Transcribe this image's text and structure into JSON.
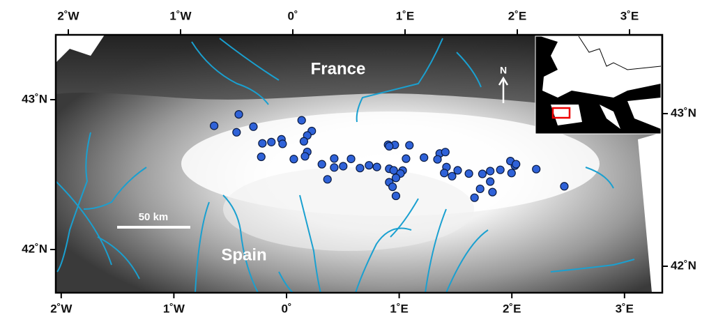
{
  "map": {
    "labels": {
      "france": "France",
      "spain": "Spain"
    },
    "north": "N",
    "scale_bar": "50 km",
    "lon_ticks": [
      {
        "value": -2,
        "label": "2˚W"
      },
      {
        "value": -1,
        "label": "1˚W"
      },
      {
        "value": 0,
        "label": "0˚"
      },
      {
        "value": 1,
        "label": "1˚E"
      },
      {
        "value": 2,
        "label": "2˚E"
      },
      {
        "value": 3,
        "label": "3˚E"
      }
    ],
    "lat_ticks": [
      {
        "value": 43,
        "label": "43˚N"
      },
      {
        "value": 42,
        "label": "42˚N"
      }
    ],
    "site_color": "#2f62d8",
    "sites": {
      "lon": [
        -0.67,
        -0.45,
        -0.47,
        -0.32,
        -0.24,
        -0.16,
        -0.07,
        -0.06,
        -0.25,
        0.11,
        0.2,
        0.16,
        0.13,
        0.16,
        0.14,
        0.04,
        0.29,
        0.34,
        0.4,
        0.4,
        0.48,
        0.55,
        0.63,
        0.71,
        0.78,
        0.88,
        0.94,
        1.07,
        1.04,
        0.89,
        0.93,
        1.01,
        0.99,
        0.89,
        0.95,
        0.92,
        0.95,
        1.2,
        1.34,
        1.39,
        1.32,
        1.4,
        1.38,
        1.45,
        1.5,
        1.6,
        1.72,
        1.79,
        1.88,
        1.79,
        1.7,
        1.65,
        1.81,
        1.98,
        2.01,
        1.97,
        2.02,
        2.2,
        2.45,
        0.89
      ],
      "lat": [
        42.85,
        42.93,
        42.81,
        42.85,
        42.74,
        42.75,
        42.77,
        42.74,
        42.65,
        42.9,
        42.83,
        42.8,
        42.76,
        42.69,
        42.66,
        42.64,
        42.61,
        42.51,
        42.65,
        42.59,
        42.6,
        42.65,
        42.59,
        42.61,
        42.6,
        42.75,
        42.75,
        42.75,
        42.66,
        42.59,
        42.58,
        42.58,
        42.56,
        42.5,
        42.53,
        42.47,
        42.41,
        42.67,
        42.7,
        42.71,
        42.66,
        42.61,
        42.57,
        42.55,
        42.59,
        42.57,
        42.57,
        42.59,
        42.6,
        42.52,
        42.47,
        42.41,
        42.45,
        42.58,
        42.63,
        42.66,
        42.64,
        42.61,
        42.5,
        42.74
      ]
    }
  }
}
